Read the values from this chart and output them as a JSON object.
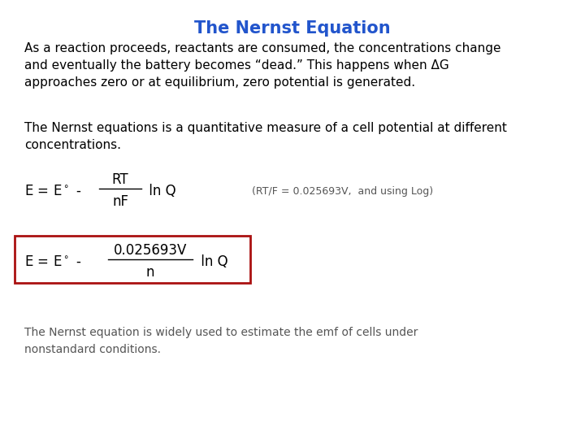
{
  "title": "The Nernst Equation",
  "title_color": "#2255CC",
  "title_fontsize": 15,
  "bg_color": "#FFFFFF",
  "para1": "As a reaction proceeds, reactants are consumed, the concentrations change\nand eventually the battery becomes “dead.” This happens when ΔG\napproaches zero or at equilibrium, zero potential is generated.",
  "para2": "The Nernst equations is a quantitative measure of a cell potential at different\nconcentrations.",
  "para_fontsize": 11,
  "eq1_note": "(RT/F = 0.025693V,  and using Log)",
  "eq1_note_fontsize": 9,
  "eq_fontsize": 12,
  "box_color": "#AA1111",
  "footer": "The Nernst equation is widely used to estimate the emf of cells under\nnonstandard conditions.",
  "footer_fontsize": 10,
  "footer_color": "#555555"
}
